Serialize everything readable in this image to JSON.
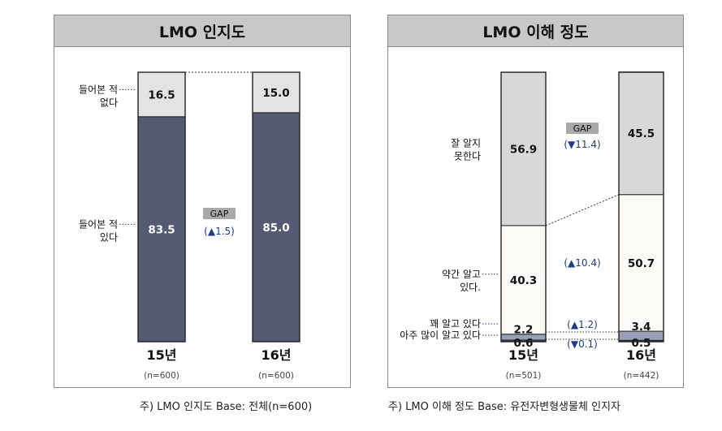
{
  "chart_data": [
    {
      "type": "bar",
      "title": "LMO 인지도",
      "categories": [
        "15년",
        "16년"
      ],
      "sample_sizes": [
        "(n=600)",
        "(n=600)"
      ],
      "series": [
        {
          "name": "들어본 적 있다",
          "label_lines": [
            "들어본 적",
            "있다"
          ],
          "values": [
            83.5,
            85.0
          ],
          "labels": [
            "83.5",
            "85.0"
          ],
          "color": "#535a72"
        },
        {
          "name": "들어본 적 없다",
          "label_lines": [
            "들어본 적",
            "없다"
          ],
          "values": [
            16.5,
            15.0
          ],
          "labels": [
            "16.5",
            "15.0"
          ],
          "color": "#e3e3e3"
        }
      ],
      "gap": {
        "title": "GAP",
        "value": "(▲1.5)"
      },
      "note": "주) LMO 인지도 Base: 전체(n=600)",
      "ylim": [
        0,
        100
      ]
    },
    {
      "type": "bar",
      "title": "LMO 이해 정도",
      "categories": [
        "15년",
        "16년"
      ],
      "sample_sizes": [
        "(n=501)",
        "(n=442)"
      ],
      "series": [
        {
          "name": "아주 많이 알고 있다",
          "label_lines": [
            "아주 많이 알고 있다"
          ],
          "values": [
            0.6,
            0.5
          ],
          "labels": [
            "0.6",
            "0.5"
          ],
          "color": "#3a3f5c"
        },
        {
          "name": "꽤 알고 있다",
          "label_lines": [
            "꽤 알고 있다"
          ],
          "values": [
            2.2,
            3.4
          ],
          "labels": [
            "2.2",
            "3.4"
          ],
          "color": "#9a9fb8"
        },
        {
          "name": "약간 알고 있다.",
          "label_lines": [
            "약간 알고",
            "있다."
          ],
          "values": [
            40.3,
            50.7
          ],
          "labels": [
            "40.3",
            "50.7"
          ],
          "color": "#fbfaf6"
        },
        {
          "name": "잘 알지 못한다",
          "label_lines": [
            "잘 알지",
            "못한다"
          ],
          "values": [
            56.9,
            45.5
          ],
          "labels": [
            "56.9",
            "45.5"
          ],
          "color": "#d8d8d8"
        }
      ],
      "gaps": [
        {
          "series": "잘 알지 못한다",
          "title": "GAP",
          "value": "(▼11.4)"
        },
        {
          "series": "약간 알고 있다.",
          "value": "(▲10.4)"
        },
        {
          "series": "꽤 알고 있다",
          "value": "(▲1.2)"
        },
        {
          "series": "아주 많이 알고 있다",
          "value": "(▼0.1)"
        }
      ],
      "note": "주) LMO 이해 정도 Base: 유전자변형생물체 인지자",
      "ylim": [
        0,
        100
      ]
    }
  ]
}
